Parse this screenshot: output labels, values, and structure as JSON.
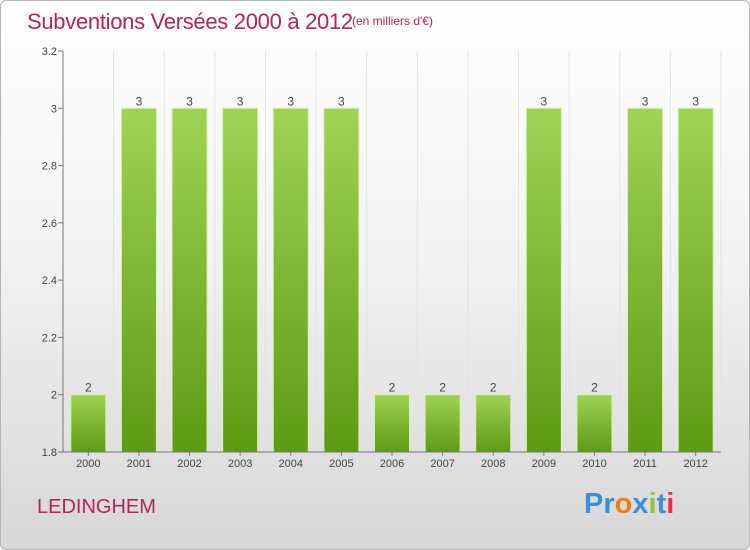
{
  "title": "Subventions Versées 2000 à 2012",
  "unit_note": "(en milliers d'€)",
  "commune": "LEDINGHEM",
  "brand": {
    "text": "Proxiti",
    "letter_colors": [
      "#3b8ed8",
      "#3b8ed8",
      "#f07d1a",
      "#3b8ed8",
      "#8dc63f",
      "#3b8ed8",
      "#e8303b"
    ]
  },
  "colors": {
    "accent": "#b0255a",
    "bar_top": "#9fd355",
    "bar_bottom": "#5e9a14",
    "bar_edge": "#d8efb5",
    "axis": "#777777",
    "grid": "#e2e2e2"
  },
  "chart_data": {
    "type": "bar",
    "categories": [
      "2000",
      "2001",
      "2002",
      "2003",
      "2004",
      "2005",
      "2006",
      "2007",
      "2008",
      "2009",
      "2010",
      "2011",
      "2012"
    ],
    "values": [
      2,
      3,
      3,
      3,
      3,
      3,
      2,
      2,
      2,
      3,
      2,
      3,
      3
    ],
    "data_labels": [
      "2",
      "3",
      "3",
      "3",
      "3",
      "3",
      "2",
      "2",
      "2",
      "3",
      "2",
      "3",
      "3"
    ],
    "yticks": [
      "1.8",
      "2",
      "2.2",
      "2.4",
      "2.6",
      "2.8",
      "3",
      "3.2"
    ],
    "ylim": [
      1.8,
      3.2
    ],
    "grid": "vertical",
    "xlabel": "",
    "ylabel": ""
  }
}
